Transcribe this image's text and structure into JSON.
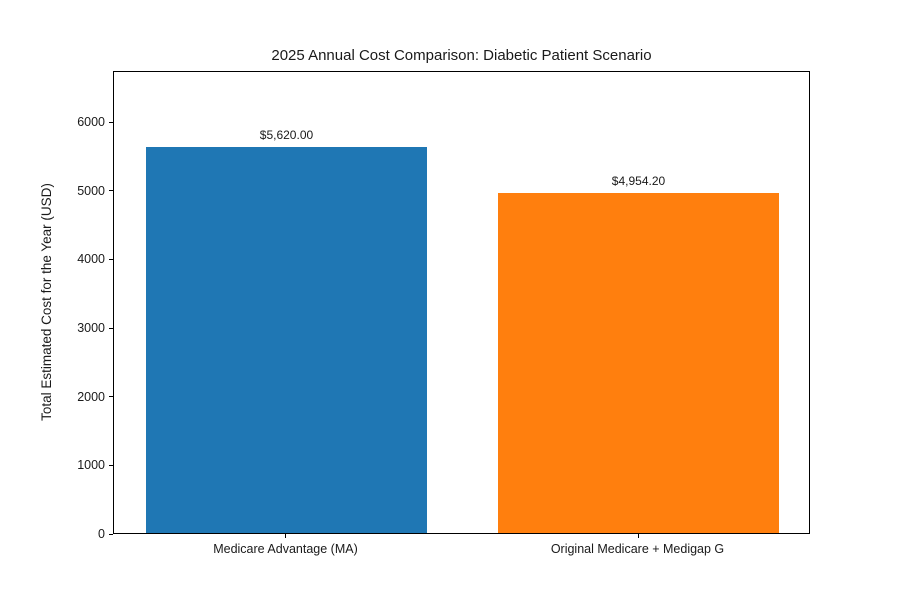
{
  "figure": {
    "background": "#ffffff",
    "frame_color": "#000000",
    "text_color": "#1a1a1a"
  },
  "chart_data": {
    "type": "bar",
    "title": "2025 Annual Cost Comparison: Diabetic Patient Scenario",
    "categories": [
      "Medicare Advantage (MA)",
      "Original Medicare + Medigap G"
    ],
    "values": [
      5620.0,
      4954.2
    ],
    "value_labels": [
      "$5,620.00",
      "$4,954.20"
    ],
    "bar_colors": [
      "#1f77b4",
      "#ff7f0e"
    ],
    "xlabel": "",
    "ylabel": "Total Estimated Cost for the Year (USD)",
    "ylim": [
      0,
      6744
    ],
    "yticks": [
      0,
      1000,
      2000,
      3000,
      4000,
      5000,
      6000
    ],
    "grid": false,
    "legend": null
  }
}
